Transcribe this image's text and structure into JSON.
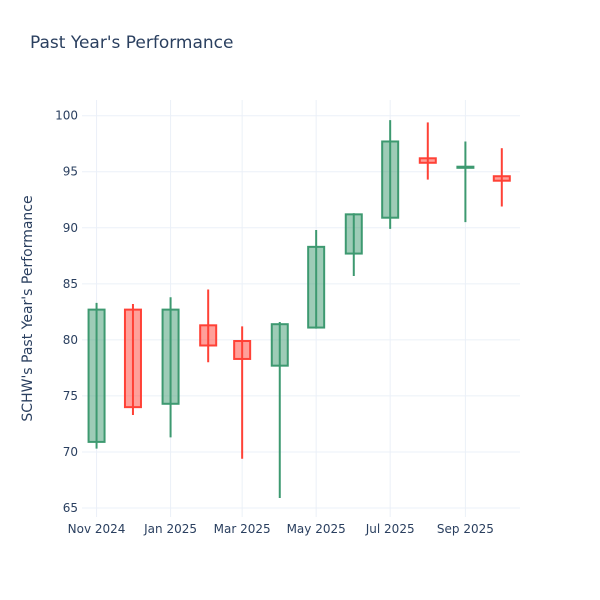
{
  "chart_data": {
    "type": "candlestick",
    "title": "Past Year's Performance",
    "xlabel": "",
    "ylabel": "SCHW's Past Year's Performance",
    "ylim": [
      64.2,
      101.4
    ],
    "xlim": [
      "2024-10-20",
      "2025-10-16"
    ],
    "grid": true,
    "colors": {
      "increasing": "#3d9970",
      "decreasing": "#ff4136",
      "grid": "#ebf0f8",
      "text": "#2a3f5f"
    },
    "x_ticks": [
      {
        "date": "2024-11-01",
        "label": "Nov 2024"
      },
      {
        "date": "2025-01-01",
        "label": "Jan 2025"
      },
      {
        "date": "2025-03-01",
        "label": "Mar 2025"
      },
      {
        "date": "2025-05-01",
        "label": "May 2025"
      },
      {
        "date": "2025-07-01",
        "label": "Jul 2025"
      },
      {
        "date": "2025-09-01",
        "label": "Sep 2025"
      }
    ],
    "y_ticks": [
      65,
      70,
      75,
      80,
      85,
      90,
      95,
      100
    ],
    "candles": [
      {
        "date": "2024-11-01",
        "open": 70.9,
        "high": 83.3,
        "low": 70.3,
        "close": 82.7
      },
      {
        "date": "2024-12-01",
        "open": 82.7,
        "high": 83.2,
        "low": 73.3,
        "close": 74.0
      },
      {
        "date": "2025-01-01",
        "open": 74.3,
        "high": 83.8,
        "low": 71.3,
        "close": 82.7
      },
      {
        "date": "2025-02-01",
        "open": 81.3,
        "high": 84.5,
        "low": 78.0,
        "close": 79.5
      },
      {
        "date": "2025-03-01",
        "open": 79.9,
        "high": 81.2,
        "low": 69.4,
        "close": 78.3
      },
      {
        "date": "2025-04-01",
        "open": 77.7,
        "high": 81.6,
        "low": 65.9,
        "close": 81.4
      },
      {
        "date": "2025-05-01",
        "open": 81.1,
        "high": 89.8,
        "low": 81.0,
        "close": 88.3
      },
      {
        "date": "2025-06-01",
        "open": 87.7,
        "high": 91.3,
        "low": 85.7,
        "close": 91.2
      },
      {
        "date": "2025-07-01",
        "open": 90.9,
        "high": 99.6,
        "low": 89.9,
        "close": 97.7
      },
      {
        "date": "2025-08-01",
        "open": 96.2,
        "high": 99.4,
        "low": 94.3,
        "close": 95.8
      },
      {
        "date": "2025-09-01",
        "open": 95.35,
        "high": 97.7,
        "low": 90.5,
        "close": 95.45
      },
      {
        "date": "2025-10-01",
        "open": 94.6,
        "high": 97.1,
        "low": 91.9,
        "close": 94.2
      }
    ]
  }
}
